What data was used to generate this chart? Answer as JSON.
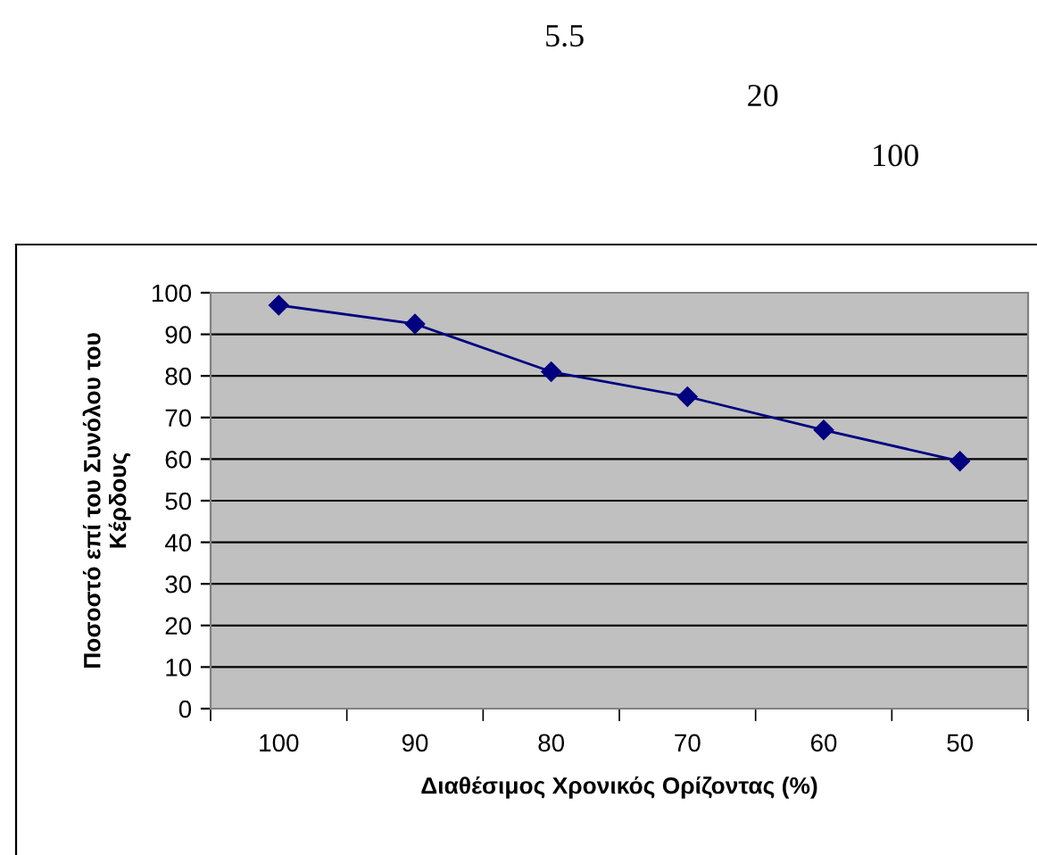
{
  "chart_data": {
    "type": "line",
    "xlabel": "Διαθέσιμος Χρονικός Ορίζοντας (%)",
    "ylabel": "Ποσοστό επί του Συνόλου του\nΚέρδους",
    "categories": [
      "100",
      "90",
      "80",
      "70",
      "60",
      "50"
    ],
    "series": [
      {
        "color": "#000080",
        "values": [
          97,
          92.5,
          81,
          75,
          67,
          59.5
        ]
      }
    ],
    "ylim": [
      0,
      100
    ],
    "yticks": [
      0,
      10,
      20,
      30,
      40,
      50,
      60,
      70,
      80,
      90,
      100
    ],
    "grid": "y",
    "marker": "diamond",
    "line_style": "solid",
    "legend": false,
    "annotations": [
      "5.5",
      "20",
      "100"
    ]
  }
}
